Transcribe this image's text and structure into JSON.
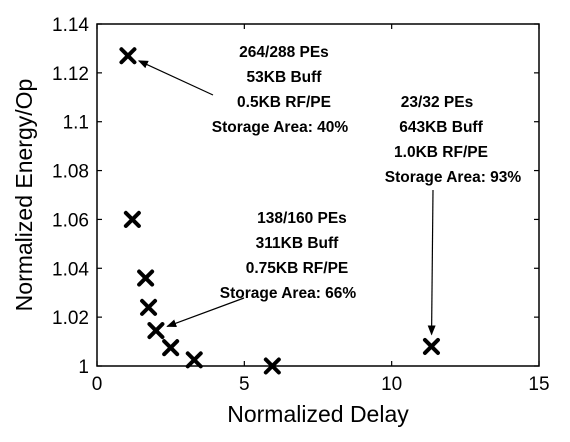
{
  "chart_data": {
    "type": "scatter",
    "title": "",
    "xlabel": "Normalized Delay",
    "ylabel": "Normalized Energy/Op",
    "xlim": [
      0,
      15
    ],
    "ylim": [
      1,
      1.14
    ],
    "xticks": [
      0,
      5,
      10,
      15
    ],
    "xtick_labels": [
      "0",
      "5",
      "10",
      "15"
    ],
    "yticks": [
      1,
      1.02,
      1.04,
      1.06,
      1.08,
      1.1,
      1.12,
      1.14
    ],
    "ytick_labels": [
      "1",
      "1.02",
      "1.04",
      "1.06",
      "1.08",
      "1.1",
      "1.12",
      "1.14"
    ],
    "grid": false,
    "marker": "x",
    "marker_color": "#000000",
    "series": [
      {
        "points": [
          {
            "x": 1.05,
            "y": 1.127
          },
          {
            "x": 1.2,
            "y": 1.06
          },
          {
            "x": 1.65,
            "y": 1.036
          },
          {
            "x": 1.75,
            "y": 1.024
          },
          {
            "x": 2.0,
            "y": 1.0145
          },
          {
            "x": 2.5,
            "y": 1.0075
          },
          {
            "x": 3.3,
            "y": 1.0025
          },
          {
            "x": 5.95,
            "y": 1.0
          },
          {
            "x": 11.35,
            "y": 1.008
          }
        ]
      }
    ],
    "annotations": [
      {
        "lines": [
          "264/288 PEs",
          "53KB Buff",
          "0.5KB RF/PE",
          "Storage Area: 40%"
        ],
        "points_to": {
          "x": 1.05,
          "y": 1.127
        }
      },
      {
        "lines": [
          "23/32 PEs",
          "643KB Buff",
          "1.0KB RF/PE",
          "Storage Area: 93%"
        ],
        "points_to": {
          "x": 11.35,
          "y": 1.008
        }
      },
      {
        "lines": [
          "138/160 PEs",
          "311KB Buff",
          "0.75KB RF/PE",
          "Storage Area: 66%"
        ],
        "points_to": {
          "x": 2.0,
          "y": 1.0145
        }
      }
    ]
  }
}
